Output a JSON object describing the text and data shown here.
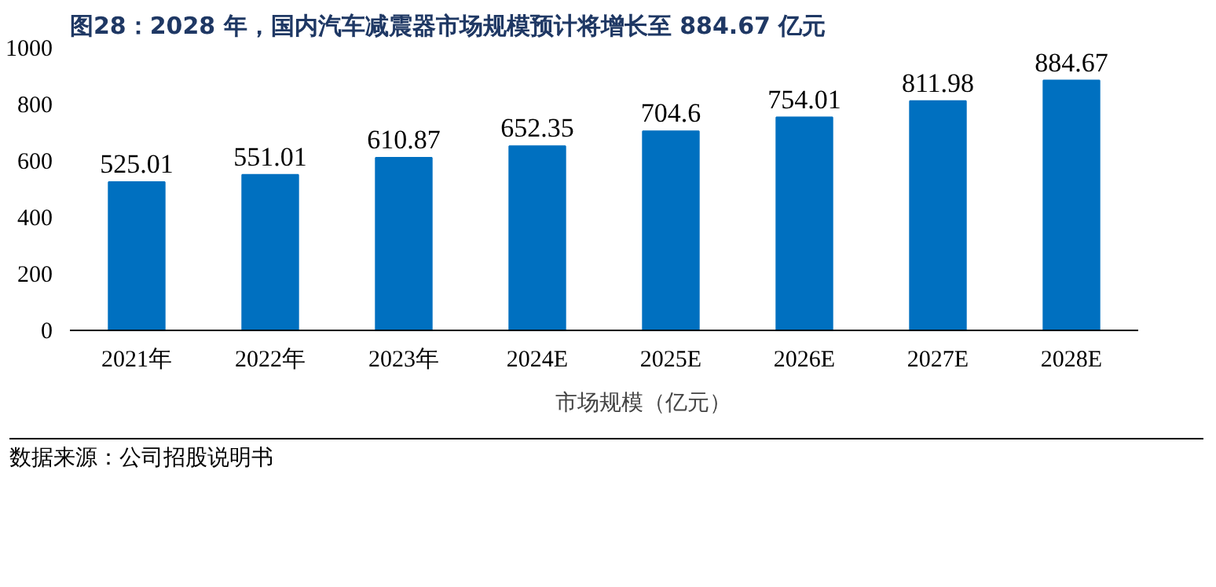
{
  "chart_data": {
    "type": "bar",
    "title": "图28：2028 年，国内汽车减震器市场规模预计将增长至 884.67 亿元",
    "categories": [
      "2021年",
      "2022年",
      "2023年",
      "2024E",
      "2025E",
      "2026E",
      "2027E",
      "2028E"
    ],
    "series": [
      {
        "name": "市场规模（亿元）",
        "color": "#0070c0",
        "values": [
          525.01,
          551.01,
          610.87,
          652.35,
          704.6,
          754.01,
          811.98,
          884.67
        ]
      }
    ],
    "ylim": [
      0,
      1000
    ],
    "yticks": [
      0,
      200,
      400,
      600,
      800,
      1000
    ],
    "grid": false,
    "legend": "bottom",
    "data_labels": true,
    "annotations": [
      "数据来源：公司招股说明书"
    ]
  }
}
